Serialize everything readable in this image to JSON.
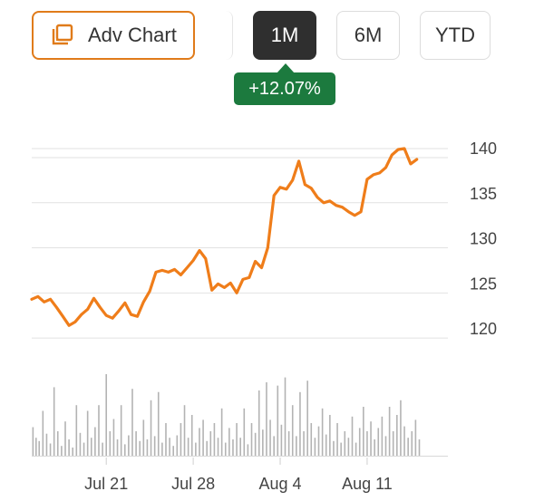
{
  "toolbar": {
    "adv_chart_label": "Adv Chart",
    "ranges": [
      {
        "label": "1M",
        "selected": true
      },
      {
        "label": "6M",
        "selected": false
      },
      {
        "label": "YTD",
        "selected": false
      }
    ],
    "change_label": "+12.07%",
    "change_color": "#1c7a3e",
    "accent_color": "#e07b1a",
    "selected_color": "#2f2f2f"
  },
  "chart_data": {
    "type": "line",
    "x_ticks": [
      {
        "label": "Jul 21",
        "day": 6
      },
      {
        "label": "Jul 28",
        "day": 13
      },
      {
        "label": "Aug 4",
        "day": 20
      },
      {
        "label": "Aug 11",
        "day": 27
      }
    ],
    "y_ticks": [
      140,
      135,
      130,
      125,
      120
    ],
    "ylim": [
      117,
      141
    ],
    "xlim": [
      0,
      33.5
    ],
    "grid": true,
    "line_color": "#ef7d1a",
    "price_series": [
      [
        0,
        124.3
      ],
      [
        0.5,
        124.6
      ],
      [
        1,
        124.0
      ],
      [
        1.5,
        124.3
      ],
      [
        2,
        123.4
      ],
      [
        2.5,
        122.4
      ],
      [
        3,
        121.4
      ],
      [
        3.5,
        121.8
      ],
      [
        4,
        122.6
      ],
      [
        4.5,
        123.2
      ],
      [
        5,
        124.4
      ],
      [
        5.5,
        123.4
      ],
      [
        6,
        122.5
      ],
      [
        6.5,
        122.2
      ],
      [
        7,
        123.0
      ],
      [
        7.5,
        123.9
      ],
      [
        8,
        122.6
      ],
      [
        8.5,
        122.4
      ],
      [
        9,
        124.0
      ],
      [
        9.5,
        125.2
      ],
      [
        10,
        127.3
      ],
      [
        10.5,
        127.5
      ],
      [
        11,
        127.3
      ],
      [
        11.5,
        127.6
      ],
      [
        12,
        127.0
      ],
      [
        12.5,
        127.8
      ],
      [
        13,
        128.6
      ],
      [
        13.5,
        129.7
      ],
      [
        14,
        128.8
      ],
      [
        14.5,
        125.3
      ],
      [
        15,
        126.0
      ],
      [
        15.5,
        125.6
      ],
      [
        16,
        126.1
      ],
      [
        16.5,
        125.0
      ],
      [
        17,
        126.5
      ],
      [
        17.5,
        126.7
      ],
      [
        18,
        128.5
      ],
      [
        18.5,
        127.8
      ],
      [
        19,
        130.0
      ],
      [
        19.5,
        135.8
      ],
      [
        20,
        136.7
      ],
      [
        20.5,
        136.5
      ],
      [
        21,
        137.5
      ],
      [
        21.5,
        139.6
      ],
      [
        22,
        137.0
      ],
      [
        22.5,
        136.6
      ],
      [
        23,
        135.6
      ],
      [
        23.5,
        135.0
      ],
      [
        24,
        135.2
      ],
      [
        24.5,
        134.7
      ],
      [
        25,
        134.5
      ],
      [
        25.5,
        134.0
      ],
      [
        26,
        133.6
      ],
      [
        26.5,
        134.0
      ],
      [
        27,
        137.6
      ],
      [
        27.5,
        138.1
      ],
      [
        28,
        138.3
      ],
      [
        28.5,
        138.9
      ],
      [
        29,
        140.3
      ],
      [
        29.5,
        140.9
      ],
      [
        30,
        141.0
      ],
      [
        30.5,
        139.3
      ],
      [
        31,
        139.8
      ]
    ],
    "volume_series": [
      [
        0.1,
        0.35
      ],
      [
        0.35,
        0.22
      ],
      [
        0.6,
        0.18
      ],
      [
        0.9,
        0.55
      ],
      [
        1.2,
        0.27
      ],
      [
        1.5,
        0.15
      ],
      [
        1.8,
        0.84
      ],
      [
        2.1,
        0.3
      ],
      [
        2.4,
        0.12
      ],
      [
        2.7,
        0.42
      ],
      [
        3.0,
        0.2
      ],
      [
        3.3,
        0.1
      ],
      [
        3.6,
        0.62
      ],
      [
        3.9,
        0.28
      ],
      [
        4.2,
        0.16
      ],
      [
        4.5,
        0.55
      ],
      [
        4.8,
        0.22
      ],
      [
        5.1,
        0.35
      ],
      [
        5.4,
        0.62
      ],
      [
        5.7,
        0.16
      ],
      [
        6.0,
        1.0
      ],
      [
        6.3,
        0.3
      ],
      [
        6.6,
        0.45
      ],
      [
        6.9,
        0.2
      ],
      [
        7.2,
        0.62
      ],
      [
        7.5,
        0.14
      ],
      [
        7.8,
        0.25
      ],
      [
        8.1,
        0.82
      ],
      [
        8.4,
        0.3
      ],
      [
        8.7,
        0.18
      ],
      [
        9.0,
        0.44
      ],
      [
        9.3,
        0.2
      ],
      [
        9.6,
        0.68
      ],
      [
        9.9,
        0.24
      ],
      [
        10.2,
        0.78
      ],
      [
        10.5,
        0.16
      ],
      [
        10.8,
        0.4
      ],
      [
        11.1,
        0.22
      ],
      [
        11.4,
        0.12
      ],
      [
        11.7,
        0.25
      ],
      [
        12.0,
        0.4
      ],
      [
        12.3,
        0.62
      ],
      [
        12.6,
        0.22
      ],
      [
        12.9,
        0.5
      ],
      [
        13.2,
        0.16
      ],
      [
        13.5,
        0.34
      ],
      [
        13.8,
        0.44
      ],
      [
        14.1,
        0.18
      ],
      [
        14.4,
        0.3
      ],
      [
        14.7,
        0.4
      ],
      [
        15.0,
        0.22
      ],
      [
        15.3,
        0.58
      ],
      [
        15.6,
        0.16
      ],
      [
        15.9,
        0.34
      ],
      [
        16.2,
        0.2
      ],
      [
        16.5,
        0.4
      ],
      [
        16.8,
        0.22
      ],
      [
        17.1,
        0.58
      ],
      [
        17.4,
        0.14
      ],
      [
        17.7,
        0.4
      ],
      [
        18.0,
        0.28
      ],
      [
        18.3,
        0.8
      ],
      [
        18.6,
        0.32
      ],
      [
        18.9,
        0.9
      ],
      [
        19.2,
        0.44
      ],
      [
        19.5,
        0.24
      ],
      [
        19.8,
        0.86
      ],
      [
        20.1,
        0.38
      ],
      [
        20.4,
        0.96
      ],
      [
        20.7,
        0.3
      ],
      [
        21.0,
        0.62
      ],
      [
        21.3,
        0.24
      ],
      [
        21.6,
        0.78
      ],
      [
        21.9,
        0.3
      ],
      [
        22.2,
        0.92
      ],
      [
        22.5,
        0.4
      ],
      [
        22.8,
        0.22
      ],
      [
        23.1,
        0.36
      ],
      [
        23.4,
        0.58
      ],
      [
        23.7,
        0.26
      ],
      [
        24.0,
        0.5
      ],
      [
        24.3,
        0.18
      ],
      [
        24.6,
        0.4
      ],
      [
        24.9,
        0.16
      ],
      [
        25.2,
        0.3
      ],
      [
        25.5,
        0.22
      ],
      [
        25.8,
        0.48
      ],
      [
        26.1,
        0.16
      ],
      [
        26.4,
        0.34
      ],
      [
        26.7,
        0.6
      ],
      [
        27.0,
        0.3
      ],
      [
        27.3,
        0.42
      ],
      [
        27.6,
        0.2
      ],
      [
        27.9,
        0.34
      ],
      [
        28.2,
        0.48
      ],
      [
        28.5,
        0.24
      ],
      [
        28.8,
        0.6
      ],
      [
        29.1,
        0.3
      ],
      [
        29.4,
        0.5
      ],
      [
        29.7,
        0.68
      ],
      [
        30.0,
        0.36
      ],
      [
        30.3,
        0.22
      ],
      [
        30.6,
        0.3
      ],
      [
        30.9,
        0.44
      ],
      [
        31.2,
        0.2
      ]
    ]
  }
}
